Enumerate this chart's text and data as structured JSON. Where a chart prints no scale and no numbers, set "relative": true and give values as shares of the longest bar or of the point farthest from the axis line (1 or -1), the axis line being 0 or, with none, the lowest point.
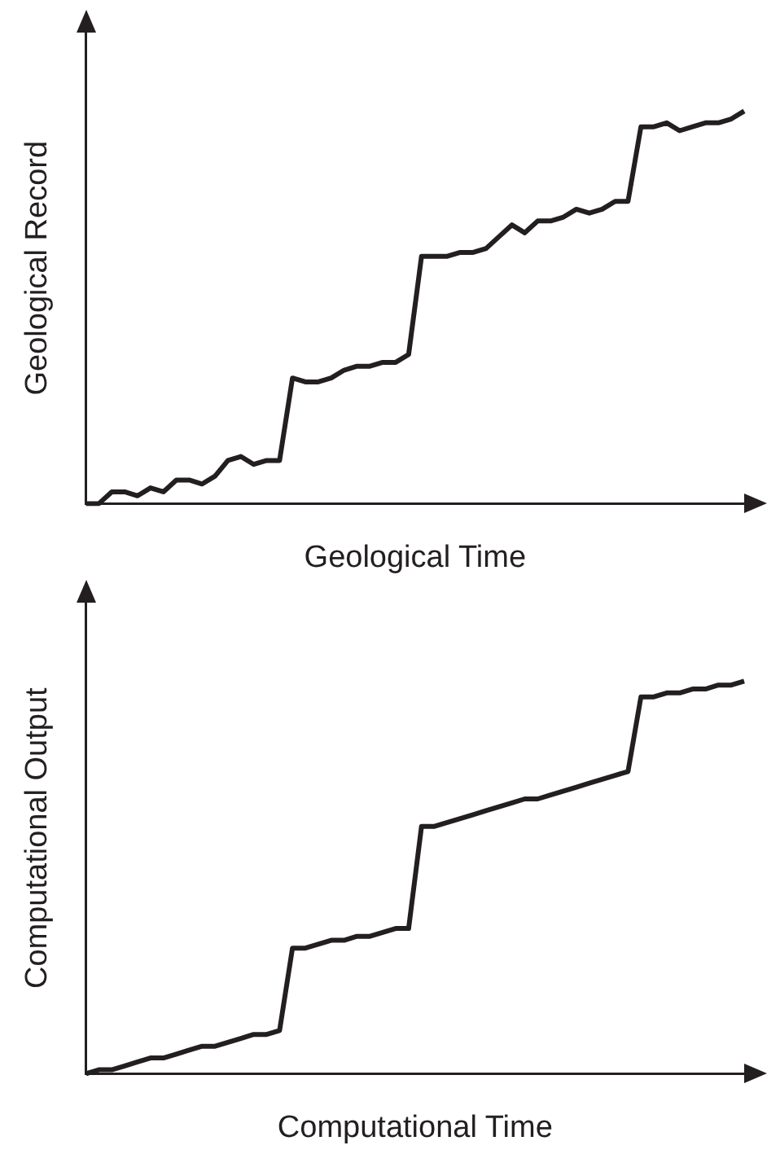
{
  "chart_data": [
    {
      "type": "line",
      "xlabel": "Geological Time",
      "ylabel": "Geological Record",
      "relative": true,
      "categories": [
        null,
        null,
        null,
        null,
        null,
        null,
        null,
        null,
        null,
        null,
        null,
        null,
        null,
        null,
        null,
        null,
        null,
        null,
        null,
        null,
        null,
        null,
        null,
        null,
        null,
        null,
        null,
        null,
        null,
        null,
        null,
        null,
        null,
        null,
        null,
        null,
        null,
        null,
        null,
        null,
        null,
        null,
        null,
        null,
        null,
        null,
        null,
        null,
        null,
        null,
        null,
        null
      ],
      "series": [
        {
          "color": "#231f20",
          "values": [
            0,
            0,
            0.03,
            0.03,
            0.02,
            0.04,
            0.03,
            0.06,
            0.06,
            0.05,
            0.07,
            0.11,
            0.12,
            0.1,
            0.11,
            0.11,
            0.32,
            0.31,
            0.31,
            0.32,
            0.34,
            0.35,
            0.35,
            0.36,
            0.36,
            0.38,
            0.63,
            0.63,
            0.63,
            0.64,
            0.64,
            0.65,
            0.68,
            0.71,
            0.69,
            0.72,
            0.72,
            0.73,
            0.75,
            0.74,
            0.75,
            0.77,
            0.77,
            0.96,
            0.96,
            0.97,
            0.95,
            0.96,
            0.97,
            0.97,
            0.98,
            1.0
          ]
        }
      ]
    },
    {
      "type": "line",
      "xlabel": "Computational Time",
      "ylabel": "Computational Output",
      "relative": true,
      "categories": [
        null,
        null,
        null,
        null,
        null,
        null,
        null,
        null,
        null,
        null,
        null,
        null,
        null,
        null,
        null,
        null,
        null,
        null,
        null,
        null,
        null,
        null,
        null,
        null,
        null,
        null,
        null,
        null,
        null,
        null,
        null,
        null,
        null,
        null,
        null,
        null,
        null,
        null,
        null,
        null,
        null,
        null,
        null,
        null,
        null,
        null,
        null,
        null,
        null,
        null,
        null,
        null
      ],
      "series": [
        {
          "color": "#231f20",
          "values": [
            0,
            0.01,
            0.01,
            0.02,
            0.03,
            0.04,
            0.04,
            0.05,
            0.06,
            0.07,
            0.07,
            0.08,
            0.09,
            0.1,
            0.1,
            0.11,
            0.32,
            0.32,
            0.33,
            0.34,
            0.34,
            0.35,
            0.35,
            0.36,
            0.37,
            0.37,
            0.63,
            0.63,
            0.64,
            0.65,
            0.66,
            0.67,
            0.68,
            0.69,
            0.7,
            0.7,
            0.71,
            0.72,
            0.73,
            0.74,
            0.75,
            0.76,
            0.77,
            0.96,
            0.96,
            0.97,
            0.97,
            0.98,
            0.98,
            0.99,
            0.99,
            1.0
          ]
        }
      ]
    }
  ]
}
